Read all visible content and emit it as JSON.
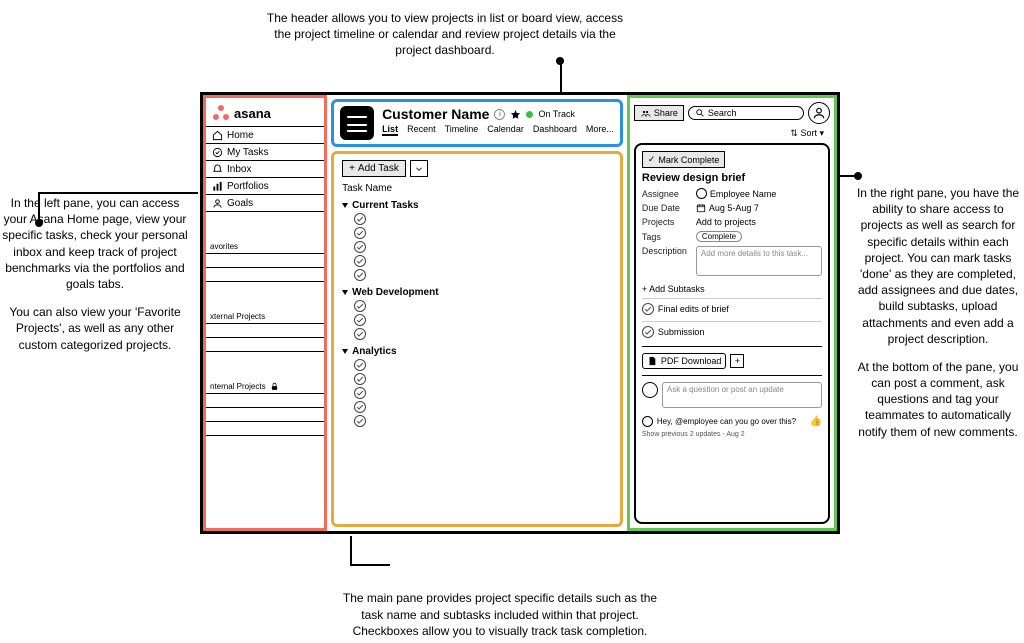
{
  "annotations": {
    "top": "The header allows you to view projects in list or board view, access the project timeline or calendar and review project details via the project dashboard.",
    "left_p1": "In the left pane, you can access your Asana Home page, view your specific tasks, check your personal inbox and keep track of project benchmarks via the portfolios and goals tabs.",
    "left_p2": "You can also view your 'Favorite Projects', as well as any other custom categorized projects.",
    "right_p1": "In the right pane, you have the ability to share access to projects as well as search for specific details within each project. You can mark tasks 'done' as they are completed, add assignees and due dates, build subtasks, upload attachments and even add a project description.",
    "right_p2": "At the bottom of the pane, you can post a comment, ask questions and tag your teammates to automatically notify them of new comments.",
    "bottom": "The main pane provides project specific details such as the task name and subtasks included within that project. Checkboxes allow you to visually track task completion."
  },
  "sidebar": {
    "brand": "asana",
    "nav": [
      "Home",
      "My Tasks",
      "Inbox",
      "Portfolios",
      "Goals"
    ],
    "sections": [
      "avorites",
      "xternal Projects",
      "nternal Projects"
    ]
  },
  "header": {
    "title": "Customer Name",
    "status": "On Track",
    "tabs": [
      "List",
      "Recent",
      "Timeline",
      "Calendar",
      "Dashboard",
      "More..."
    ]
  },
  "tasks": {
    "add_label": "Add Task",
    "column": "Task Name",
    "sections": [
      {
        "name": "Current Tasks",
        "count": 5
      },
      {
        "name": "Web Development",
        "count": 3
      },
      {
        "name": "Analytics",
        "count": 5
      }
    ]
  },
  "right": {
    "share": "Share",
    "search_placeholder": "Search",
    "sort": "Sort",
    "mark_complete": "Mark Complete",
    "task_title": "Review design brief",
    "assignee_label": "Assignee",
    "assignee_value": "Employee Name",
    "due_label": "Due Date",
    "due_value": "Aug 5-Aug 7",
    "projects_label": "Projects",
    "projects_value": "Add to projects",
    "tags_label": "Tags",
    "tags_value": "Complete",
    "desc_label": "Description",
    "desc_placeholder": "Add more details to this task...",
    "add_subtasks": "Add Subtasks",
    "subtasks": [
      "Final edits of brief",
      "Submission"
    ],
    "pdf": "PDF Download",
    "comment_placeholder": "Ask a question or post an update",
    "last_comment": "Hey, @employee can you go over this?",
    "history": "Show previous 2 updates - Aug 2"
  }
}
